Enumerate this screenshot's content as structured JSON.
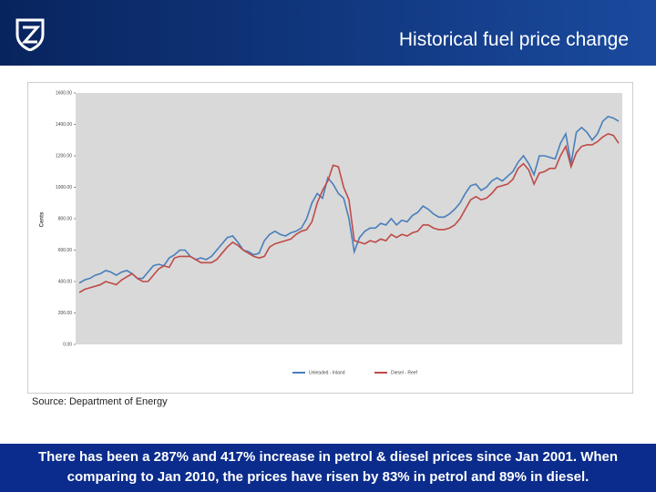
{
  "slide": {
    "title": "Historical fuel price change",
    "source": "Source: Department of Energy",
    "footer": "There has been a 287% and 417% increase in petrol & diesel prices since Jan 2001. When comparing to Jan 2010, the prices have risen by 83% in petrol and 89% in diesel."
  },
  "chart_data": {
    "type": "line",
    "ylabel": "Cents",
    "categories": [
      null,
      null,
      null,
      null,
      null,
      null,
      null,
      null,
      null,
      null,
      null,
      null,
      null,
      null,
      null,
      null,
      null,
      null,
      null,
      null,
      null,
      null,
      null,
      null,
      null,
      null,
      null,
      null,
      null,
      null,
      null,
      null,
      null,
      null,
      null,
      null,
      null,
      null,
      null,
      null,
      null,
      null,
      null,
      null,
      null,
      null,
      null,
      null,
      null,
      null,
      null,
      null,
      null,
      null,
      null,
      null,
      null,
      null,
      null,
      null,
      null,
      null,
      null,
      null,
      null,
      null,
      null,
      null,
      null,
      null,
      null,
      null,
      null,
      null,
      null,
      null,
      null,
      null,
      null,
      null,
      null,
      null,
      null,
      null,
      null,
      null,
      null,
      null,
      null,
      null,
      null,
      null,
      null,
      null,
      null,
      null,
      null,
      null,
      null,
      null,
      null,
      null,
      null
    ],
    "series": [
      {
        "name": "Unleaded - Inland",
        "color": "#4a7ebb",
        "values": [
          390,
          410,
          420,
          440,
          450,
          470,
          460,
          440,
          460,
          470,
          450,
          420,
          420,
          460,
          500,
          510,
          500,
          550,
          570,
          600,
          600,
          560,
          540,
          550,
          540,
          560,
          600,
          640,
          680,
          690,
          650,
          600,
          590,
          570,
          580,
          660,
          700,
          720,
          700,
          690,
          710,
          720,
          740,
          800,
          900,
          960,
          930,
          1060,
          1020,
          960,
          930,
          800,
          590,
          680,
          720,
          740,
          740,
          770,
          760,
          800,
          760,
          790,
          780,
          820,
          840,
          880,
          860,
          830,
          810,
          810,
          830,
          860,
          900,
          960,
          1010,
          1020,
          980,
          1000,
          1040,
          1060,
          1040,
          1070,
          1100,
          1160,
          1200,
          1150,
          1080,
          1200,
          1200,
          1190,
          1180,
          1280,
          1340,
          1150,
          1350,
          1380,
          1350,
          1300,
          1340,
          1420,
          1450,
          1440,
          1420
        ]
      },
      {
        "name": "Diesel - Reef",
        "color": "#be4b48",
        "values": [
          330,
          350,
          360,
          370,
          380,
          400,
          390,
          380,
          410,
          430,
          450,
          420,
          400,
          400,
          440,
          480,
          500,
          490,
          550,
          560,
          560,
          560,
          540,
          520,
          520,
          520,
          540,
          580,
          620,
          650,
          630,
          600,
          580,
          560,
          550,
          560,
          620,
          640,
          650,
          660,
          670,
          700,
          720,
          730,
          780,
          900,
          980,
          1040,
          1140,
          1130,
          1000,
          920,
          660,
          650,
          640,
          660,
          650,
          670,
          660,
          700,
          680,
          700,
          690,
          710,
          720,
          760,
          760,
          740,
          730,
          730,
          740,
          760,
          800,
          860,
          920,
          940,
          920,
          930,
          960,
          1000,
          1010,
          1020,
          1050,
          1120,
          1150,
          1110,
          1020,
          1090,
          1100,
          1120,
          1120,
          1200,
          1260,
          1130,
          1220,
          1260,
          1270,
          1270,
          1290,
          1320,
          1340,
          1330,
          1280
        ]
      }
    ],
    "ylim": [
      0,
      1600
    ],
    "yticks": [
      {
        "value": 0,
        "label": "0.00"
      },
      {
        "value": 200,
        "label": "200.00"
      },
      {
        "value": 400,
        "label": "400.00"
      },
      {
        "value": 600,
        "label": "600.00"
      },
      {
        "value": 800,
        "label": "800.00"
      },
      {
        "value": 1000,
        "label": "1000.00"
      },
      {
        "value": 1200,
        "label": "1200.00"
      },
      {
        "value": 1400,
        "label": "1400.00"
      },
      {
        "value": 1600,
        "label": "1600.00"
      }
    ],
    "grid": false,
    "legend": "bottom"
  }
}
